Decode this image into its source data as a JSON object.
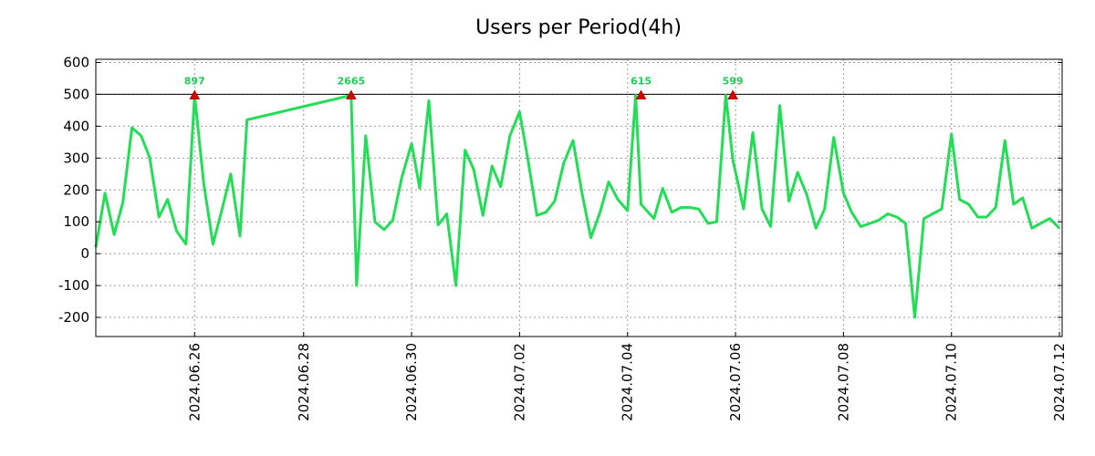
{
  "chart_data": {
    "type": "line",
    "title": "Users per Period(4h)",
    "xlabel": "",
    "ylabel": "",
    "ylim": [
      -260,
      610
    ],
    "yticks": [
      600,
      500,
      400,
      300,
      200,
      100,
      0,
      -100,
      -200
    ],
    "ytick_labels": [
      "600",
      "500",
      "400",
      "300",
      "200",
      "100",
      "0",
      "-100",
      "-200"
    ],
    "xlim": [
      0,
      17.9
    ],
    "xticks": [
      {
        "x": 1.83,
        "label": "2024.06.26"
      },
      {
        "x": 3.85,
        "label": "2024.06.28"
      },
      {
        "x": 5.85,
        "label": "2024.06.30"
      },
      {
        "x": 7.85,
        "label": "2024.07.02"
      },
      {
        "x": 9.85,
        "label": "2024.07.04"
      },
      {
        "x": 11.85,
        "label": "2024.07.06"
      },
      {
        "x": 13.85,
        "label": "2024.07.08"
      },
      {
        "x": 15.85,
        "label": "2024.07.10"
      },
      {
        "x": 17.85,
        "label": "2024.07.12"
      }
    ],
    "reference_line": 500,
    "series": [
      {
        "name": "Users",
        "color": "#22dd55",
        "x": [
          0.0,
          0.17,
          0.34,
          0.5,
          0.67,
          0.84,
          1.0,
          1.17,
          1.33,
          1.5,
          1.67,
          1.83,
          2.0,
          2.17,
          2.34,
          2.5,
          2.67,
          2.8,
          4.73,
          4.83,
          5.0,
          5.17,
          5.34,
          5.5,
          5.67,
          5.85,
          6.0,
          6.17,
          6.34,
          6.5,
          6.67,
          6.84,
          7.0,
          7.17,
          7.34,
          7.5,
          7.67,
          7.85,
          8.0,
          8.17,
          8.34,
          8.5,
          8.67,
          8.84,
          9.0,
          9.17,
          9.34,
          9.5,
          9.67,
          9.85,
          10.0,
          10.1,
          10.34,
          10.5,
          10.67,
          10.84,
          11.0,
          11.17,
          11.34,
          11.5,
          11.67,
          11.8,
          12.0,
          12.17,
          12.34,
          12.5,
          12.67,
          12.84,
          13.0,
          13.17,
          13.34,
          13.5,
          13.67,
          13.85,
          14.0,
          14.17,
          14.34,
          14.5,
          14.67,
          14.84,
          15.0,
          15.17,
          15.34,
          15.5,
          15.67,
          15.85,
          16.0,
          16.17,
          16.34,
          16.5,
          16.67,
          16.84,
          17.0,
          17.17,
          17.34,
          17.5,
          17.67,
          17.85
        ],
        "values": [
          20,
          190,
          60,
          160,
          395,
          370,
          300,
          115,
          170,
          70,
          30,
          497,
          220,
          30,
          140,
          250,
          55,
          420,
          497,
          -100,
          370,
          100,
          75,
          105,
          240,
          345,
          205,
          480,
          90,
          125,
          -100,
          325,
          265,
          120,
          275,
          210,
          370,
          445,
          300,
          120,
          130,
          165,
          285,
          355,
          195,
          50,
          130,
          225,
          170,
          135,
          497,
          155,
          110,
          205,
          130,
          145,
          145,
          140,
          95,
          100,
          497,
          295,
          140,
          380,
          140,
          85,
          465,
          165,
          255,
          185,
          80,
          140,
          365,
          190,
          130,
          85,
          95,
          105,
          125,
          115,
          95,
          -200,
          110,
          125,
          140,
          375,
          170,
          155,
          115,
          115,
          145,
          355,
          155,
          175,
          80,
          95,
          110,
          80
        ]
      }
    ],
    "peaks": [
      {
        "x": 1.83,
        "y": 497,
        "label": "897"
      },
      {
        "x": 4.73,
        "y": 497,
        "label": "2665"
      },
      {
        "x": 10.1,
        "y": 497,
        "label": "615"
      },
      {
        "x": 11.8,
        "y": 497,
        "label": "599"
      }
    ],
    "grid": true,
    "legend": "none"
  }
}
